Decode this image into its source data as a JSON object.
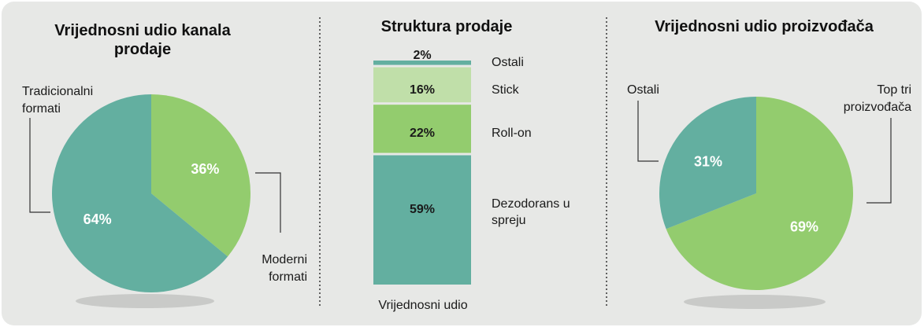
{
  "colors": {
    "background": "#e7e8e6",
    "teal": "#63afa0",
    "green": "#93cc6e",
    "light_green": "#c0dfa9",
    "shadow": "#c9cac8",
    "divider": "#333333"
  },
  "chart_data": [
    {
      "type": "pie",
      "title_lines": [
        "Vrijednosni udio kanala",
        "prodaje"
      ],
      "slices": [
        {
          "label_lines": [
            "Moderni",
            "formati"
          ],
          "value": 36,
          "display": "36%",
          "color": "#93cc6e"
        },
        {
          "label_lines": [
            "Tradicionalni",
            "formati"
          ],
          "value": 64,
          "display": "64%",
          "color": "#63afa0"
        }
      ]
    },
    {
      "type": "bar",
      "stacked": true,
      "title": "Struktura prodaje",
      "xlabel": "Vrijednosni udio",
      "segments": [
        {
          "label_lines": [
            "Dezodorans u",
            "spreju"
          ],
          "value": 59,
          "display": "59%",
          "color": "#63afa0"
        },
        {
          "label_lines": [
            "Roll-on"
          ],
          "value": 22,
          "display": "22%",
          "color": "#93cc6e"
        },
        {
          "label_lines": [
            "Stick"
          ],
          "value": 16,
          "display": "16%",
          "color": "#c0dfa9"
        },
        {
          "label_lines": [
            "Ostali"
          ],
          "value": 2,
          "display": "2%",
          "color": "#63afa0"
        }
      ]
    },
    {
      "type": "pie",
      "title_lines": [
        "Vrijednosni udio proizvođača"
      ],
      "slices": [
        {
          "label_lines": [
            "Top tri",
            "proizvođača"
          ],
          "value": 69,
          "display": "69%",
          "color": "#93cc6e"
        },
        {
          "label_lines": [
            "Ostali"
          ],
          "value": 31,
          "display": "31%",
          "color": "#63afa0"
        }
      ]
    }
  ]
}
